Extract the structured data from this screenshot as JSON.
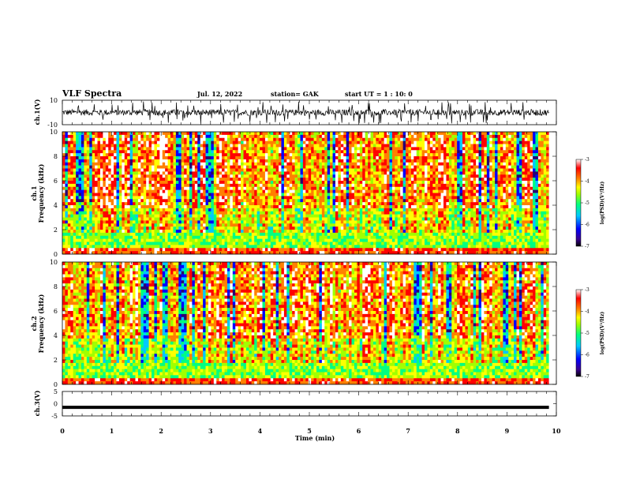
{
  "header": {
    "title": "VLF Spectra",
    "date": "Jul. 12, 2022",
    "station": "station= GAK",
    "start": "start UT = 1 : 10: 0"
  },
  "chart_data": [
    {
      "type": "line",
      "panel": "ch1-waveform",
      "ylabel": "ch.1(V)",
      "ylim": [
        -10,
        10
      ],
      "yticks": [
        10,
        -10
      ],
      "x_range_min": [
        0,
        9.85
      ],
      "description_level": "noisy waveform around 0 V"
    },
    {
      "type": "heatmap",
      "panel": "ch1-spectrogram",
      "ylabel": "ch.1\nFrequency (kHz)",
      "ylim": [
        0,
        10
      ],
      "yticks": [
        0,
        2,
        4,
        6,
        8,
        10
      ],
      "x_range_min": [
        0,
        9.85
      ],
      "colorbar": {
        "label": "log(PSD)(V²/Hz)",
        "ticks": [
          -3,
          -4,
          -5,
          -6,
          -7
        ],
        "range": [
          -7,
          -3
        ]
      }
    },
    {
      "type": "heatmap",
      "panel": "ch2-spectrogram",
      "ylabel": "ch.2\nFrequency (kHz)",
      "ylim": [
        0,
        10
      ],
      "yticks": [
        0,
        2,
        4,
        6,
        8,
        10
      ],
      "x_range_min": [
        0,
        9.85
      ],
      "colorbar": {
        "label": "log(PSD)(V²/Hz)",
        "ticks": [
          -3,
          -4,
          -5,
          -6,
          -7
        ],
        "range": [
          -7,
          -3
        ]
      }
    },
    {
      "type": "line",
      "panel": "ch3-waveform",
      "ylabel": "ch.3(V)",
      "ylim": [
        -5,
        5
      ],
      "yticks": [
        5,
        0,
        -5
      ],
      "constant_value": -1.5,
      "x_range_min": [
        0,
        9.85
      ]
    }
  ],
  "xaxis": {
    "label": "Time (min)",
    "ticks": [
      0,
      1,
      2,
      3,
      4,
      5,
      6,
      7,
      8,
      9,
      10
    ],
    "xlim": [
      0,
      10
    ]
  },
  "colors": {
    "colormap": [
      "#000000",
      "#2a0070",
      "#0000ff",
      "#00c8ff",
      "#00ff80",
      "#a0ff00",
      "#ffff00",
      "#ff8000",
      "#ff0000",
      "#ffffff"
    ],
    "line": "#000000"
  }
}
